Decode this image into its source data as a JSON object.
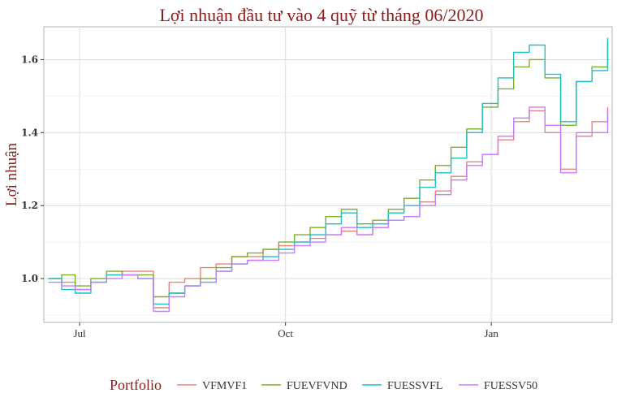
{
  "chart_data": {
    "type": "line",
    "title": "Lợi nhuận đầu tư vào 4 quỹ từ tháng 06/2020",
    "xlabel": "",
    "ylabel": "Lợi nhuận",
    "x_ticks": [
      {
        "label": "Jul",
        "date": "2020-07-01"
      },
      {
        "label": "Oct",
        "date": "2020-10-01"
      },
      {
        "label": "Jan",
        "date": "2021-01-01"
      }
    ],
    "y_ticks": [
      1.0,
      1.2,
      1.4,
      1.6
    ],
    "xlim": [
      "2020-06-15",
      "2021-02-24"
    ],
    "ylim": [
      0.88,
      1.69
    ],
    "grid": true,
    "legend": {
      "title": "Portfolio",
      "position": "bottom"
    },
    "series": [
      {
        "name": "VFMVF1",
        "color": "#e8837d",
        "points": [
          [
            "2020-06-17",
            1.0
          ],
          [
            "2020-06-23",
            0.99
          ],
          [
            "2020-06-29",
            0.97
          ],
          [
            "2020-07-06",
            0.99
          ],
          [
            "2020-07-13",
            1.01
          ],
          [
            "2020-07-20",
            1.02
          ],
          [
            "2020-07-27",
            1.02
          ],
          [
            "2020-08-03",
            0.92
          ],
          [
            "2020-08-10",
            0.99
          ],
          [
            "2020-08-17",
            1.0
          ],
          [
            "2020-08-24",
            1.03
          ],
          [
            "2020-08-31",
            1.04
          ],
          [
            "2020-09-07",
            1.06
          ],
          [
            "2020-09-14",
            1.06
          ],
          [
            "2020-09-21",
            1.08
          ],
          [
            "2020-09-28",
            1.09
          ],
          [
            "2020-10-05",
            1.1
          ],
          [
            "2020-10-12",
            1.11
          ],
          [
            "2020-10-19",
            1.12
          ],
          [
            "2020-10-26",
            1.13
          ],
          [
            "2020-11-02",
            1.12
          ],
          [
            "2020-11-09",
            1.14
          ],
          [
            "2020-11-16",
            1.16
          ],
          [
            "2020-11-23",
            1.17
          ],
          [
            "2020-11-30",
            1.21
          ],
          [
            "2020-12-07",
            1.24
          ],
          [
            "2020-12-14",
            1.28
          ],
          [
            "2020-12-21",
            1.32
          ],
          [
            "2020-12-28",
            1.34
          ],
          [
            "2021-01-04",
            1.38
          ],
          [
            "2021-01-11",
            1.43
          ],
          [
            "2021-01-18",
            1.46
          ],
          [
            "2021-01-25",
            1.4
          ],
          [
            "2021-02-01",
            1.3
          ],
          [
            "2021-02-08",
            1.39
          ],
          [
            "2021-02-15",
            1.43
          ],
          [
            "2021-02-22",
            1.47
          ]
        ]
      },
      {
        "name": "FUEVFVND",
        "color": "#7cae29",
        "points": [
          [
            "2020-06-17",
            1.0
          ],
          [
            "2020-06-23",
            1.01
          ],
          [
            "2020-06-29",
            0.98
          ],
          [
            "2020-07-06",
            1.0
          ],
          [
            "2020-07-13",
            1.02
          ],
          [
            "2020-07-20",
            1.01
          ],
          [
            "2020-07-27",
            1.01
          ],
          [
            "2020-08-03",
            0.95
          ],
          [
            "2020-08-10",
            0.96
          ],
          [
            "2020-08-17",
            0.98
          ],
          [
            "2020-08-24",
            1.0
          ],
          [
            "2020-08-31",
            1.03
          ],
          [
            "2020-09-07",
            1.06
          ],
          [
            "2020-09-14",
            1.07
          ],
          [
            "2020-09-21",
            1.08
          ],
          [
            "2020-09-28",
            1.1
          ],
          [
            "2020-10-05",
            1.12
          ],
          [
            "2020-10-12",
            1.14
          ],
          [
            "2020-10-19",
            1.17
          ],
          [
            "2020-10-26",
            1.19
          ],
          [
            "2020-11-02",
            1.15
          ],
          [
            "2020-11-09",
            1.16
          ],
          [
            "2020-11-16",
            1.19
          ],
          [
            "2020-11-23",
            1.22
          ],
          [
            "2020-11-30",
            1.27
          ],
          [
            "2020-12-07",
            1.31
          ],
          [
            "2020-12-14",
            1.36
          ],
          [
            "2020-12-21",
            1.41
          ],
          [
            "2020-12-28",
            1.47
          ],
          [
            "2021-01-04",
            1.52
          ],
          [
            "2021-01-11",
            1.58
          ],
          [
            "2021-01-18",
            1.6
          ],
          [
            "2021-01-25",
            1.55
          ],
          [
            "2021-02-01",
            1.42
          ],
          [
            "2021-02-08",
            1.54
          ],
          [
            "2021-02-15",
            1.58
          ],
          [
            "2021-02-22",
            1.65
          ]
        ]
      },
      {
        "name": "FUESSVFL",
        "color": "#1fbfc3",
        "points": [
          [
            "2020-06-17",
            1.0
          ],
          [
            "2020-06-23",
            0.97
          ],
          [
            "2020-06-29",
            0.96
          ],
          [
            "2020-07-06",
            0.99
          ],
          [
            "2020-07-13",
            1.01
          ],
          [
            "2020-07-20",
            1.01
          ],
          [
            "2020-07-27",
            1.0
          ],
          [
            "2020-08-03",
            0.93
          ],
          [
            "2020-08-10",
            0.96
          ],
          [
            "2020-08-17",
            0.98
          ],
          [
            "2020-08-24",
            0.99
          ],
          [
            "2020-08-31",
            1.02
          ],
          [
            "2020-09-07",
            1.04
          ],
          [
            "2020-09-14",
            1.05
          ],
          [
            "2020-09-21",
            1.06
          ],
          [
            "2020-09-28",
            1.08
          ],
          [
            "2020-10-05",
            1.1
          ],
          [
            "2020-10-12",
            1.12
          ],
          [
            "2020-10-19",
            1.15
          ],
          [
            "2020-10-26",
            1.18
          ],
          [
            "2020-11-02",
            1.14
          ],
          [
            "2020-11-09",
            1.15
          ],
          [
            "2020-11-16",
            1.18
          ],
          [
            "2020-11-23",
            1.2
          ],
          [
            "2020-11-30",
            1.25
          ],
          [
            "2020-12-07",
            1.29
          ],
          [
            "2020-12-14",
            1.33
          ],
          [
            "2020-12-21",
            1.4
          ],
          [
            "2020-12-28",
            1.48
          ],
          [
            "2021-01-04",
            1.55
          ],
          [
            "2021-01-11",
            1.62
          ],
          [
            "2021-01-18",
            1.64
          ],
          [
            "2021-01-25",
            1.56
          ],
          [
            "2021-02-01",
            1.43
          ],
          [
            "2021-02-08",
            1.54
          ],
          [
            "2021-02-15",
            1.57
          ],
          [
            "2021-02-22",
            1.66
          ]
        ]
      },
      {
        "name": "FUESSV50",
        "color": "#c77cff",
        "points": [
          [
            "2020-06-17",
            0.99
          ],
          [
            "2020-06-23",
            0.98
          ],
          [
            "2020-06-29",
            0.97
          ],
          [
            "2020-07-06",
            0.99
          ],
          [
            "2020-07-13",
            1.0
          ],
          [
            "2020-07-20",
            1.01
          ],
          [
            "2020-07-27",
            1.0
          ],
          [
            "2020-08-03",
            0.91
          ],
          [
            "2020-08-10",
            0.95
          ],
          [
            "2020-08-17",
            0.98
          ],
          [
            "2020-08-24",
            0.99
          ],
          [
            "2020-08-31",
            1.02
          ],
          [
            "2020-09-07",
            1.04
          ],
          [
            "2020-09-14",
            1.05
          ],
          [
            "2020-09-21",
            1.05
          ],
          [
            "2020-09-28",
            1.07
          ],
          [
            "2020-10-05",
            1.09
          ],
          [
            "2020-10-12",
            1.1
          ],
          [
            "2020-10-19",
            1.12
          ],
          [
            "2020-10-26",
            1.14
          ],
          [
            "2020-11-02",
            1.12
          ],
          [
            "2020-11-09",
            1.14
          ],
          [
            "2020-11-16",
            1.16
          ],
          [
            "2020-11-23",
            1.17
          ],
          [
            "2020-11-30",
            1.2
          ],
          [
            "2020-12-07",
            1.23
          ],
          [
            "2020-12-14",
            1.27
          ],
          [
            "2020-12-21",
            1.31
          ],
          [
            "2020-12-28",
            1.34
          ],
          [
            "2021-01-04",
            1.39
          ],
          [
            "2021-01-11",
            1.44
          ],
          [
            "2021-01-18",
            1.47
          ],
          [
            "2021-01-25",
            1.42
          ],
          [
            "2021-02-01",
            1.29
          ],
          [
            "2021-02-08",
            1.4
          ],
          [
            "2021-02-15",
            1.4
          ],
          [
            "2021-02-22",
            1.46
          ]
        ]
      }
    ]
  }
}
